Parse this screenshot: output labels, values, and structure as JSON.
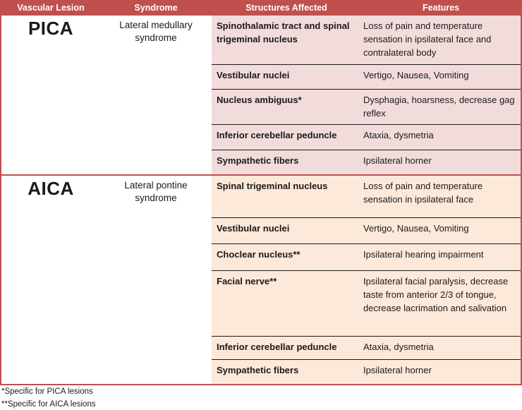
{
  "table": {
    "headers": [
      "Vascular Lesion",
      "Syndrome",
      "Structures Affected",
      "Features"
    ],
    "sections": [
      {
        "lesion": "PICA",
        "syndrome": "Lateral medullary syndrome",
        "rows": [
          {
            "structure": "Spinothalamic tract and spinal trigeminal nucleus",
            "features": "Loss of pain and temperature sensation in ipsilateral face and contralateral body"
          },
          {
            "structure": "Vestibular nuclei",
            "features": "Vertigo, Nausea, Vomiting"
          },
          {
            "structure": "Nucleus ambiguus*",
            "features": "Dysphagia, hoarsness,  decrease gag reflex"
          },
          {
            "structure": "Inferior cerebellar peduncle",
            "features": "Ataxia, dysmetria"
          },
          {
            "structure": "Sympathetic fibers",
            "features": "Ipsilateral horner"
          }
        ]
      },
      {
        "lesion": "AICA",
        "syndrome": "Lateral pontine syndrome",
        "rows": [
          {
            "structure": "Spinal trigeminal nucleus",
            "features": "Loss of pain and temperature sensation in ipsilateral face"
          },
          {
            "structure": "Vestibular nuclei",
            "features": "Vertigo, Nausea, Vomiting"
          },
          {
            "structure": "Choclear nucleus**",
            "features": "Ipsilateral hearing impairment"
          },
          {
            "structure": "Facial nerve**",
            "features": "Ipsilateral facial paralysis, decrease taste from anterior 2/3 of tongue,  decrease lacrimation and salivation"
          },
          {
            "structure": "Inferior cerebellar peduncle",
            "features": "Ataxia, dysmetria"
          },
          {
            "structure": "Sympathetic fibers",
            "features": "Ipsilateral horner"
          }
        ]
      }
    ],
    "footnotes": [
      "*Specific for PICA lesions",
      "**Specific for AICA lesions"
    ],
    "colors": {
      "header_bg": "#C0504D",
      "header_text": "#FFFFFF",
      "pica_row_bg": "#F2DCDB",
      "aica_row_bg": "#FDE9D9",
      "outer_border": "#C0504D",
      "row_divider": "#1A1A1A"
    }
  }
}
